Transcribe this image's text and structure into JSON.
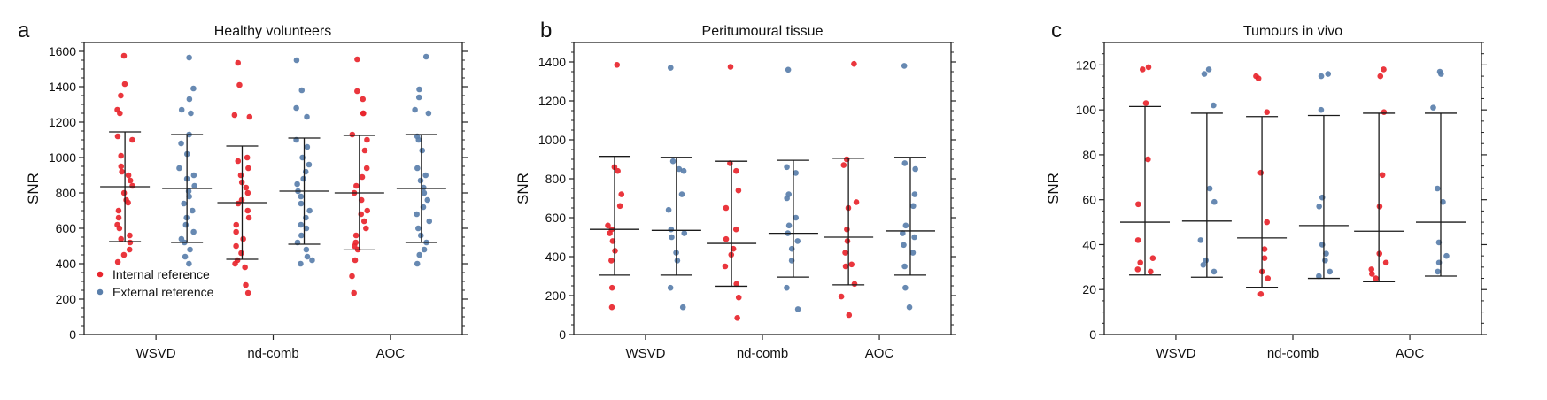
{
  "figure": {
    "colors": {
      "internal": "#e8252d",
      "external": "#5a7fab",
      "line": "#1a1a1a"
    }
  },
  "chart_data": [
    {
      "type": "scatter",
      "panel_label": "a",
      "title": "Healthy volunteers",
      "xlabel": "",
      "ylabel": "SNR",
      "categories": [
        "WSVD",
        "nd-comb",
        "AOC"
      ],
      "ylim": [
        0,
        1650
      ],
      "yticks": [
        0,
        200,
        400,
        600,
        800,
        1000,
        1200,
        1400,
        1600
      ],
      "ytick_labels": [
        "0",
        "200",
        "400",
        "600",
        "800",
        "1000",
        "1200",
        "1400",
        "1600"
      ],
      "legend": {
        "position": "bottom-left",
        "entries": [
          "Internal reference",
          "External reference"
        ]
      },
      "series": [
        {
          "name": "Internal reference",
          "color": "#e8252d",
          "summary": [
            {
              "mean": 835,
              "lower": 525,
              "upper": 1145
            },
            {
              "mean": 745,
              "lower": 425,
              "upper": 1065
            },
            {
              "mean": 800,
              "lower": 478,
              "upper": 1125
            }
          ],
          "points": [
            [
              1575,
              1415,
              1350,
              1270,
              1250,
              1120,
              1100,
              1010,
              950,
              920,
              900,
              870,
              840,
              800,
              760,
              745,
              700,
              660,
              620,
              600,
              560,
              540,
              520,
              480,
              450,
              410
            ],
            [
              1535,
              1410,
              1240,
              1230,
              1000,
              980,
              940,
              900,
              860,
              830,
              800,
              760,
              740,
              700,
              660,
              620,
              580,
              540,
              500,
              460,
              420,
              400,
              380,
              280,
              235
            ],
            [
              1555,
              1375,
              1330,
              1250,
              1250,
              1130,
              1100,
              1040,
              940,
              890,
              840,
              800,
              760,
              700,
              680,
              640,
              600,
              560,
              520,
              500,
              480,
              420,
              330,
              235
            ]
          ]
        },
        {
          "name": "External reference",
          "color": "#5a7fab",
          "summary": [
            {
              "mean": 825,
              "lower": 520,
              "upper": 1130
            },
            {
              "mean": 810,
              "lower": 510,
              "upper": 1110
            },
            {
              "mean": 825,
              "lower": 520,
              "upper": 1130
            }
          ],
          "points": [
            [
              1565,
              1390,
              1330,
              1270,
              1250,
              1130,
              1080,
              1020,
              940,
              900,
              880,
              840,
              810,
              780,
              740,
              700,
              660,
              620,
              580,
              540,
              520,
              480,
              440,
              400
            ],
            [
              1550,
              1380,
              1280,
              1230,
              1100,
              1060,
              1000,
              960,
              920,
              880,
              850,
              810,
              780,
              740,
              700,
              660,
              620,
              600,
              560,
              520,
              480,
              440,
              420,
              400
            ],
            [
              1570,
              1385,
              1340,
              1270,
              1250,
              1120,
              1100,
              1040,
              940,
              900,
              870,
              830,
              800,
              760,
              720,
              680,
              640,
              600,
              560,
              520,
              480,
              450,
              400
            ]
          ]
        }
      ]
    },
    {
      "type": "scatter",
      "panel_label": "b",
      "title": "Peritumoural tissue",
      "xlabel": "",
      "ylabel": "SNR",
      "categories": [
        "WSVD",
        "nd-comb",
        "AOC"
      ],
      "ylim": [
        0,
        1500
      ],
      "yticks": [
        0,
        200,
        400,
        600,
        800,
        1000,
        1200,
        1400
      ],
      "ytick_labels": [
        "0",
        "200",
        "400",
        "600",
        "800",
        "1000",
        "1200",
        "1400"
      ],
      "series": [
        {
          "name": "Internal reference",
          "color": "#e8252d",
          "summary": [
            {
              "mean": 540,
              "lower": 305,
              "upper": 915
            },
            {
              "mean": 468,
              "lower": 248,
              "upper": 890
            },
            {
              "mean": 500,
              "lower": 255,
              "upper": 905
            }
          ],
          "points": [
            [
              1385,
              860,
              840,
              720,
              660,
              560,
              540,
              520,
              480,
              430,
              380,
              240,
              140
            ],
            [
              1375,
              880,
              840,
              740,
              650,
              540,
              490,
              440,
              410,
              350,
              260,
              190,
              85
            ],
            [
              1390,
              900,
              870,
              680,
              650,
              540,
              480,
              420,
              360,
              350,
              260,
              195,
              100
            ]
          ]
        },
        {
          "name": "External reference",
          "color": "#5a7fab",
          "summary": [
            {
              "mean": 535,
              "lower": 305,
              "upper": 910
            },
            {
              "mean": 520,
              "lower": 295,
              "upper": 895
            },
            {
              "mean": 532,
              "lower": 305,
              "upper": 910
            }
          ],
          "points": [
            [
              1370,
              890,
              850,
              840,
              720,
              640,
              540,
              520,
              500,
              420,
              380,
              240,
              140
            ],
            [
              1360,
              860,
              830,
              720,
              700,
              600,
              560,
              520,
              480,
              440,
              380,
              240,
              130
            ],
            [
              1380,
              880,
              850,
              720,
              660,
              560,
              520,
              500,
              460,
              420,
              350,
              240,
              140
            ]
          ]
        }
      ]
    },
    {
      "type": "scatter",
      "panel_label": "c",
      "title": "Tumours in vivo",
      "xlabel": "",
      "ylabel": "SNR",
      "categories": [
        "WSVD",
        "nd-comb",
        "AOC"
      ],
      "ylim": [
        0,
        130
      ],
      "yticks": [
        0,
        20,
        40,
        60,
        80,
        100,
        120
      ],
      "ytick_labels": [
        "0",
        "20",
        "40",
        "60",
        "80",
        "100",
        "120"
      ],
      "series": [
        {
          "name": "Internal reference",
          "color": "#e8252d",
          "summary": [
            {
              "mean": 50,
              "lower": 26.5,
              "upper": 101.5
            },
            {
              "mean": 43,
              "lower": 21,
              "upper": 97
            },
            {
              "mean": 46,
              "lower": 23.5,
              "upper": 98.5
            }
          ],
          "points": [
            [
              119,
              118,
              103,
              78,
              58,
              42,
              34,
              32,
              29,
              28
            ],
            [
              115,
              114,
              99,
              72,
              50,
              38,
              34,
              28,
              25,
              18
            ],
            [
              118,
              115,
              99,
              71,
              57,
              36,
              32,
              29,
              27,
              25
            ]
          ]
        },
        {
          "name": "External reference",
          "color": "#5a7fab",
          "summary": [
            {
              "mean": 50.5,
              "lower": 25.5,
              "upper": 98.5
            },
            {
              "mean": 48.5,
              "lower": 25,
              "upper": 97.5
            },
            {
              "mean": 50,
              "lower": 26,
              "upper": 98.5
            }
          ],
          "points": [
            [
              118,
              116,
              102,
              65,
              59,
              42,
              33,
              31,
              28
            ],
            [
              116,
              115,
              100,
              61,
              57,
              40,
              36,
              33,
              28,
              26
            ],
            [
              117,
              116,
              101,
              65,
              59,
              41,
              35,
              32,
              28
            ]
          ]
        }
      ]
    }
  ]
}
